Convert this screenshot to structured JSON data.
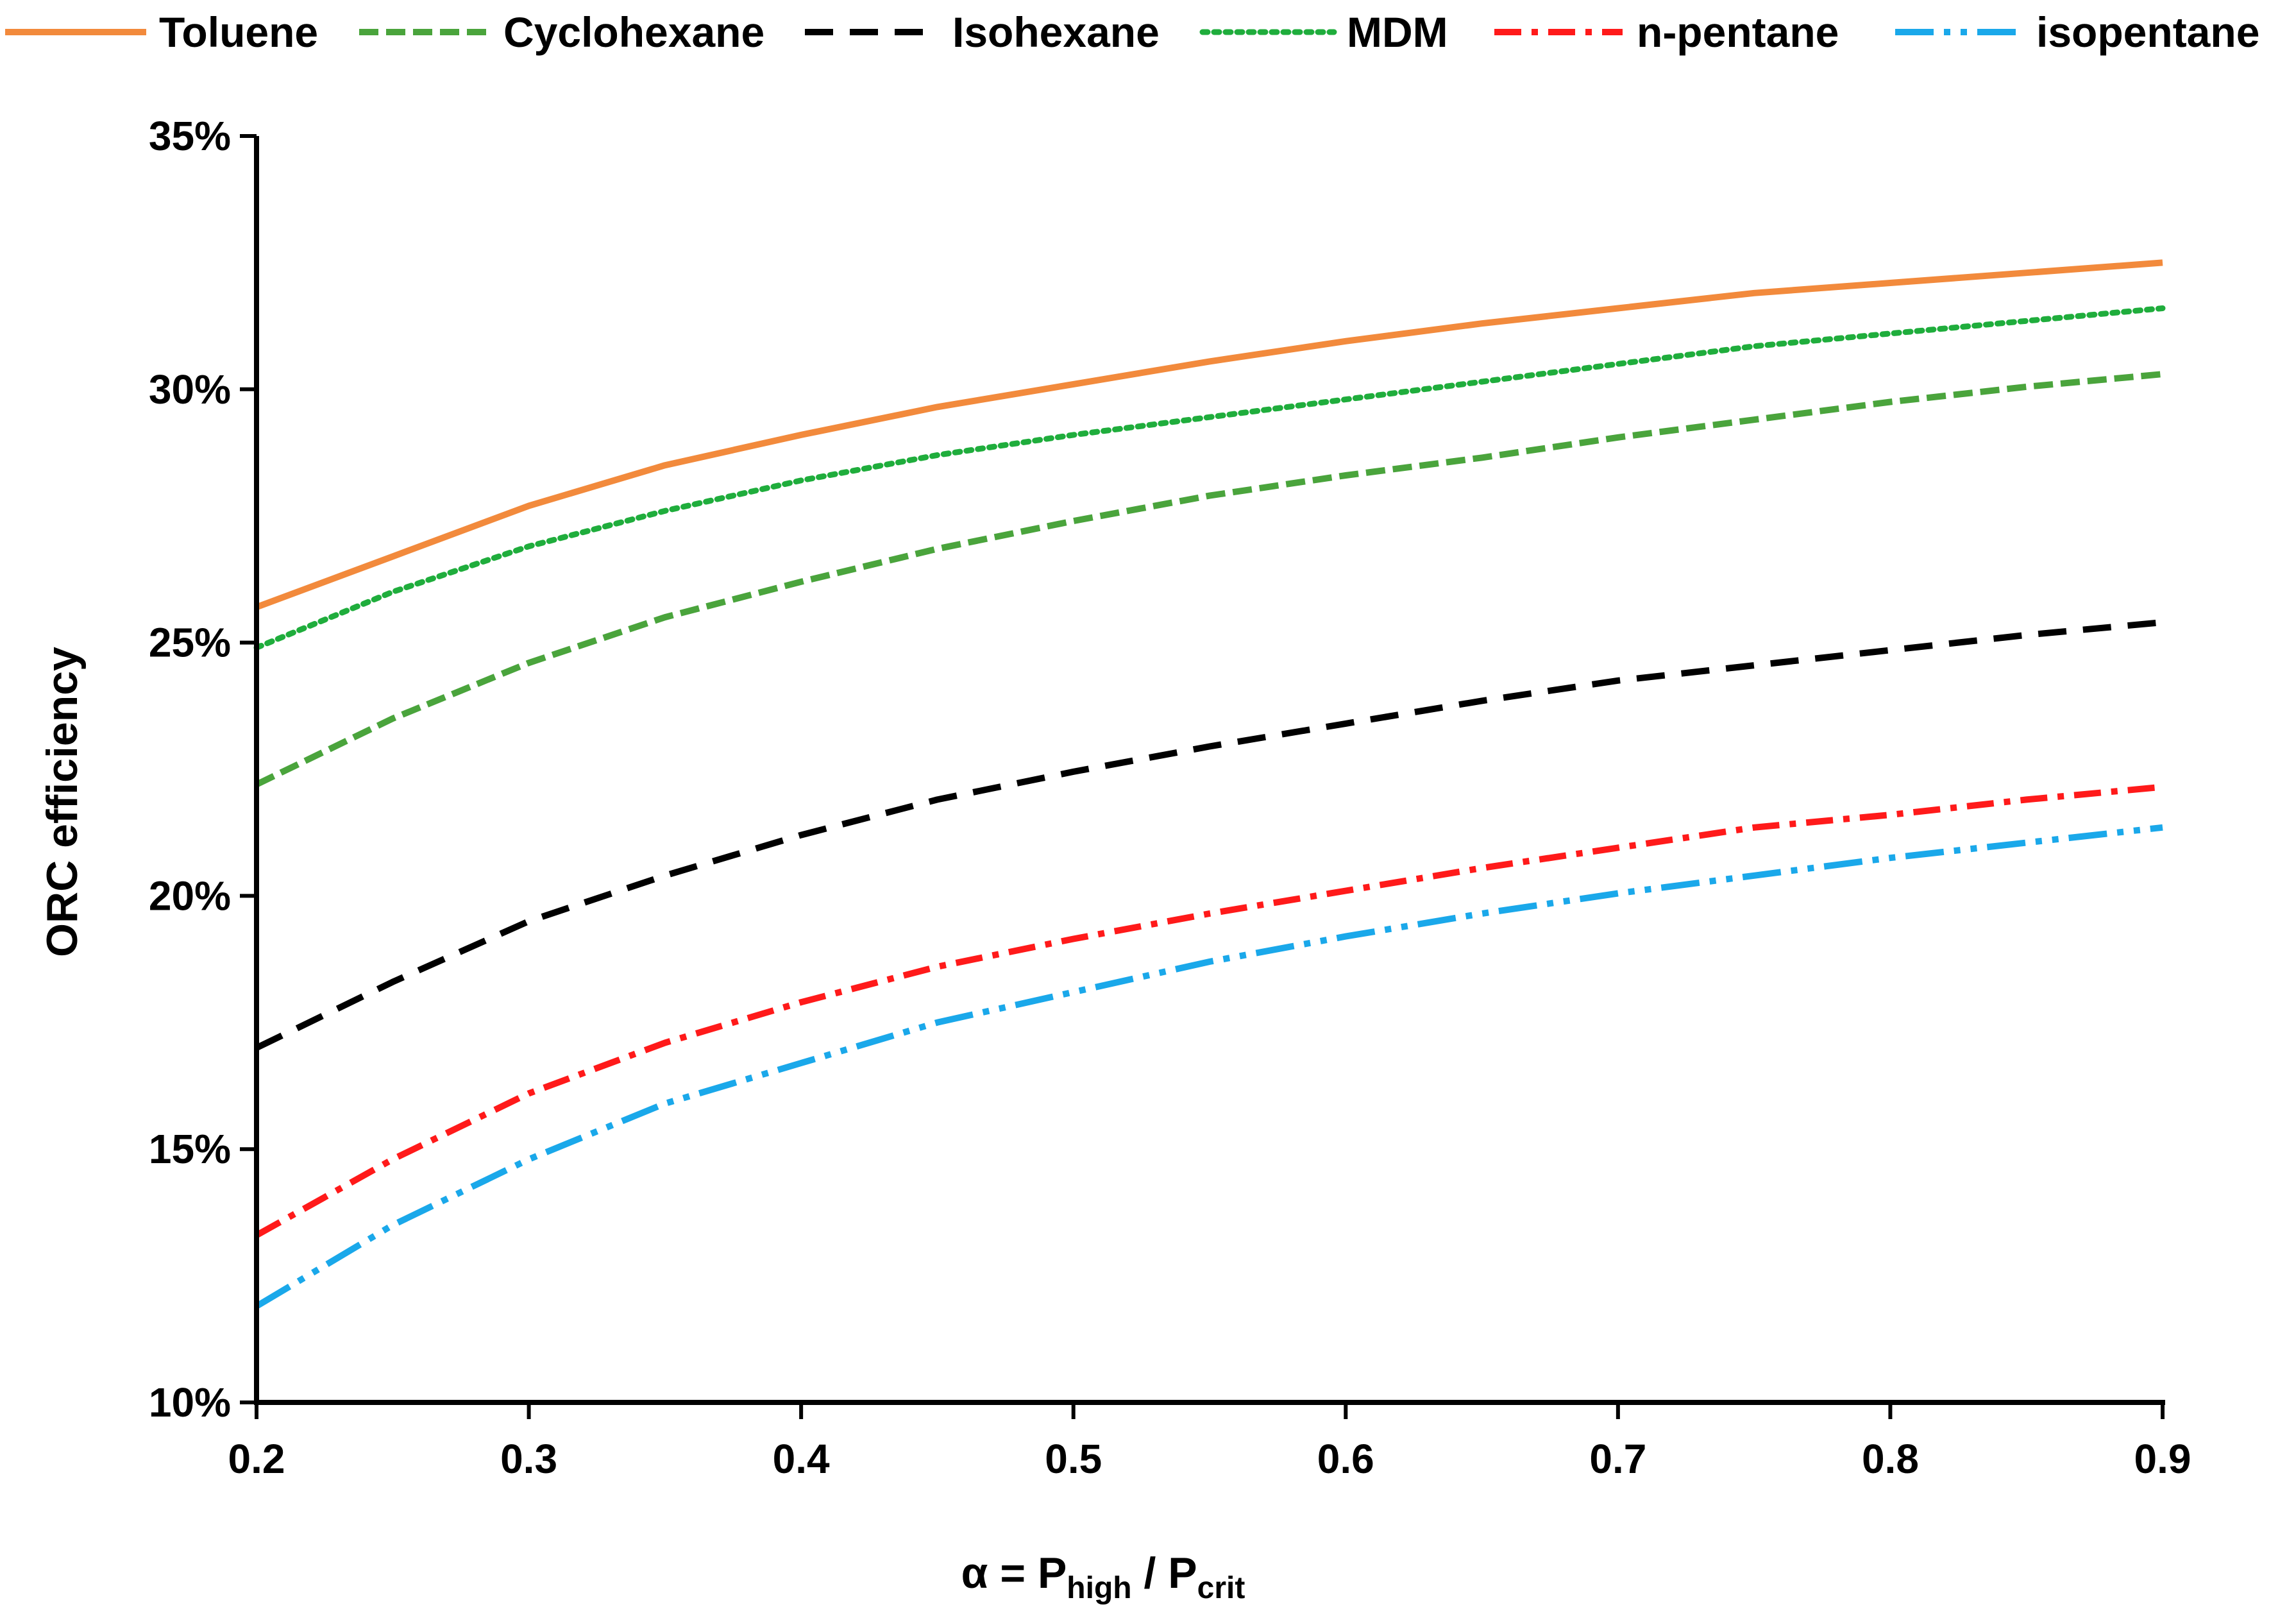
{
  "chart_data": {
    "type": "line",
    "title": "",
    "xlabel": {
      "main": "α = P",
      "sub1": "high",
      "mid": " / P",
      "sub2": "crit"
    },
    "ylabel": "ORC efficiency",
    "xlim": [
      0.2,
      0.9
    ],
    "ylim": [
      0.1,
      0.35
    ],
    "x_ticks": [
      0.2,
      0.3,
      0.4,
      0.5,
      0.6,
      0.7,
      0.8,
      0.9
    ],
    "x_tick_labels": [
      "0.2",
      "0.3",
      "0.4",
      "0.5",
      "0.6",
      "0.7",
      "0.8",
      "0.9"
    ],
    "y_ticks": [
      0.1,
      0.15,
      0.2,
      0.25,
      0.3,
      0.35
    ],
    "y_tick_labels": [
      "10%",
      "15%",
      "20%",
      "25%",
      "30%",
      "35%"
    ],
    "grid": false,
    "legend_position": "top",
    "x": [
      0.2,
      0.25,
      0.3,
      0.35,
      0.4,
      0.45,
      0.5,
      0.55,
      0.6,
      0.65,
      0.7,
      0.75,
      0.8,
      0.85,
      0.9
    ],
    "series": [
      {
        "name": "Toluene",
        "color": "#f28a3c",
        "dash": "solid",
        "values": [
          0.257,
          0.267,
          0.277,
          0.285,
          0.291,
          0.2965,
          0.301,
          0.3055,
          0.3095,
          0.313,
          0.316,
          0.319,
          0.321,
          0.323,
          0.325
        ]
      },
      {
        "name": "Cyclohexane",
        "color": "#4aa43c",
        "dash": "dashed",
        "values": [
          0.222,
          0.235,
          0.246,
          0.255,
          0.262,
          0.2685,
          0.274,
          0.279,
          0.283,
          0.2865,
          0.2905,
          0.294,
          0.2975,
          0.3005,
          0.303
        ]
      },
      {
        "name": "Isohexane",
        "color": "#000000",
        "dash": "long-dashed",
        "values": [
          0.17,
          0.183,
          0.195,
          0.204,
          0.212,
          0.219,
          0.2245,
          0.2295,
          0.234,
          0.2385,
          0.2425,
          0.2455,
          0.2485,
          0.2515,
          0.254
        ]
      },
      {
        "name": "MDM",
        "color": "#1fad3c",
        "dash": "dotted",
        "values": [
          0.249,
          0.26,
          0.269,
          0.276,
          0.282,
          0.287,
          0.291,
          0.2945,
          0.298,
          0.3015,
          0.305,
          0.3085,
          0.311,
          0.3135,
          0.316
        ]
      },
      {
        "name": "n-pentane",
        "color": "#ff1a1a",
        "dash": "dash-dot",
        "values": [
          0.133,
          0.148,
          0.161,
          0.171,
          0.179,
          0.186,
          0.1915,
          0.1965,
          0.201,
          0.2055,
          0.2095,
          0.2135,
          0.216,
          0.219,
          0.2215
        ]
      },
      {
        "name": "isopentane",
        "color": "#1aa8ea",
        "dash": "dash-dot-dot",
        "values": [
          0.119,
          0.135,
          0.148,
          0.159,
          0.167,
          0.175,
          0.181,
          0.187,
          0.192,
          0.1965,
          0.2005,
          0.204,
          0.2075,
          0.2105,
          0.2135
        ]
      }
    ]
  }
}
